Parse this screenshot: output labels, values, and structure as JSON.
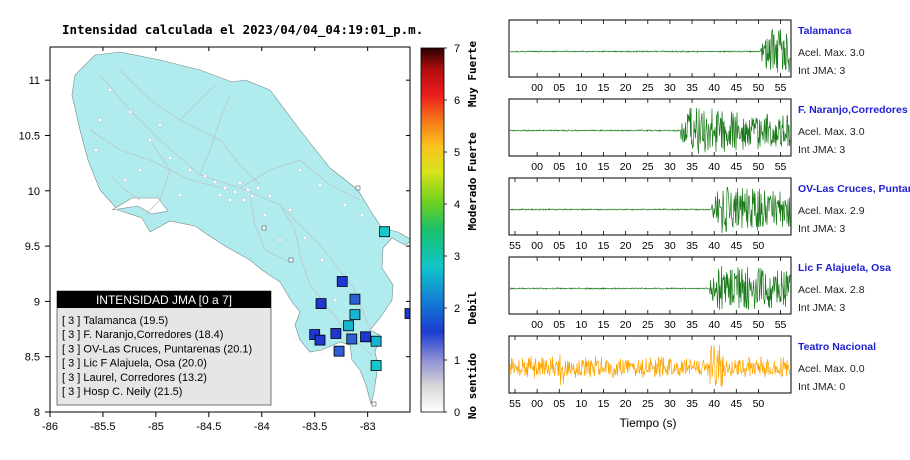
{
  "title": "Intensidad calculada el 2023/04/04_04:19:01_p.m.",
  "map": {
    "x_ticks": [
      "-86",
      "-85.5",
      "-85",
      "-84.5",
      "-84",
      "-83.5",
      "-83"
    ],
    "y_ticks": [
      "11",
      "10.5",
      "10",
      "9.5",
      "9",
      "8.5",
      "8"
    ],
    "xlim": [
      -86,
      -82.6
    ],
    "ylim": [
      8,
      11.3
    ],
    "land_color": "#b0eced",
    "stations": [
      {
        "lon": -82.84,
        "lat": 9.63,
        "color": "#17c8c8"
      },
      {
        "lon": -83.24,
        "lat": 9.18,
        "color": "#1f36d1"
      },
      {
        "lon": -83.44,
        "lat": 8.98,
        "color": "#1f36d1"
      },
      {
        "lon": -83.12,
        "lat": 9.02,
        "color": "#2d5fd3"
      },
      {
        "lon": -83.12,
        "lat": 8.88,
        "color": "#17b5d0"
      },
      {
        "lon": -83.18,
        "lat": 8.78,
        "color": "#17b5d0"
      },
      {
        "lon": -83.5,
        "lat": 8.7,
        "color": "#1f36d1"
      },
      {
        "lon": -83.45,
        "lat": 8.65,
        "color": "#1f36d1"
      },
      {
        "lon": -83.3,
        "lat": 8.71,
        "color": "#1f36d1"
      },
      {
        "lon": -83.15,
        "lat": 8.66,
        "color": "#2d5fd3"
      },
      {
        "lon": -83.02,
        "lat": 8.68,
        "color": "#1f36d1"
      },
      {
        "lon": -82.92,
        "lat": 8.64,
        "color": "#17b5d0"
      },
      {
        "lon": -83.27,
        "lat": 8.55,
        "color": "#2d5fd3"
      },
      {
        "lon": -82.6,
        "lat": 8.89,
        "color": "#1f36d1"
      },
      {
        "lon": -82.92,
        "lat": 8.42,
        "color": "#17c8c8"
      }
    ]
  },
  "colorbar": {
    "ticks": [
      "0",
      "1",
      "2",
      "3",
      "4",
      "5",
      "6",
      "7"
    ],
    "labels": [
      "No sentido",
      "Debil",
      "Moderado",
      "Fuerte",
      "Muy Fuerte"
    ]
  },
  "legend": {
    "header": "INTENSIDAD JMA [0 a 7]",
    "items": [
      "[ 3 ]  Talamanca (19.5)",
      "[ 3 ]  F. Naranjo,Corredores (18.4)",
      "[ 3 ]  OV-Las Cruces, Puntarenas (20.1)",
      "[ 3 ]  Lic F Alajuela, Osa (20.0)",
      "[ 3 ]  Laurel, Corredores (13.2)",
      "[ 3 ]  Hosp C. Neily (21.5)"
    ]
  },
  "traces": [
    {
      "name": "Talamanca",
      "acel": "Acel. Max. 3.0",
      "jma": "Int JMA: 3",
      "color": "#1a7a1a",
      "ticks": [
        "00",
        "05",
        "10",
        "15",
        "20",
        "25",
        "30",
        "35",
        "40",
        "45",
        "50",
        "55"
      ],
      "t0": 0,
      "onset": 50.5,
      "amp": 1.0
    },
    {
      "name": "F. Naranjo,Corredores",
      "acel": "Acel. Max. 3.0",
      "jma": "Int JMA: 3",
      "color": "#1a7a1a",
      "ticks": [
        "00",
        "05",
        "10",
        "15",
        "20",
        "25",
        "30",
        "35",
        "40",
        "45",
        "50",
        "55"
      ],
      "t0": 0,
      "onset": 32.5,
      "amp": 1.0
    },
    {
      "name": "OV-Las Cruces, Puntar",
      "acel": "Acel. Max. 2.9",
      "jma": "Int JMA: 3",
      "color": "#1a7a1a",
      "ticks": [
        "55",
        "00",
        "05",
        "10",
        "15",
        "20",
        "25",
        "30",
        "35",
        "40",
        "45",
        "50"
      ],
      "t0": -5,
      "onset": 39.5,
      "amp": 1.0
    },
    {
      "name": "Lic F Alajuela, Osa",
      "acel": "Acel. Max. 2.8",
      "jma": "Int JMA: 3",
      "color": "#1a7a1a",
      "ticks": [
        "00",
        "05",
        "10",
        "15",
        "20",
        "25",
        "30",
        "35",
        "40",
        "45",
        "50",
        "55"
      ],
      "t0": 0,
      "onset": 39,
      "amp": 1.0
    },
    {
      "name": "Teatro Nacional",
      "acel": "Acel. Max. 0.0",
      "jma": "Int JMA: 0",
      "color": "#ffa500",
      "ticks": [
        "55",
        "00",
        "05",
        "10",
        "15",
        "20",
        "25",
        "30",
        "35",
        "40",
        "45",
        "50"
      ],
      "t0": -5,
      "onset": -1,
      "amp": 0.9
    }
  ],
  "xaxis_label": "Tiempo (s)"
}
